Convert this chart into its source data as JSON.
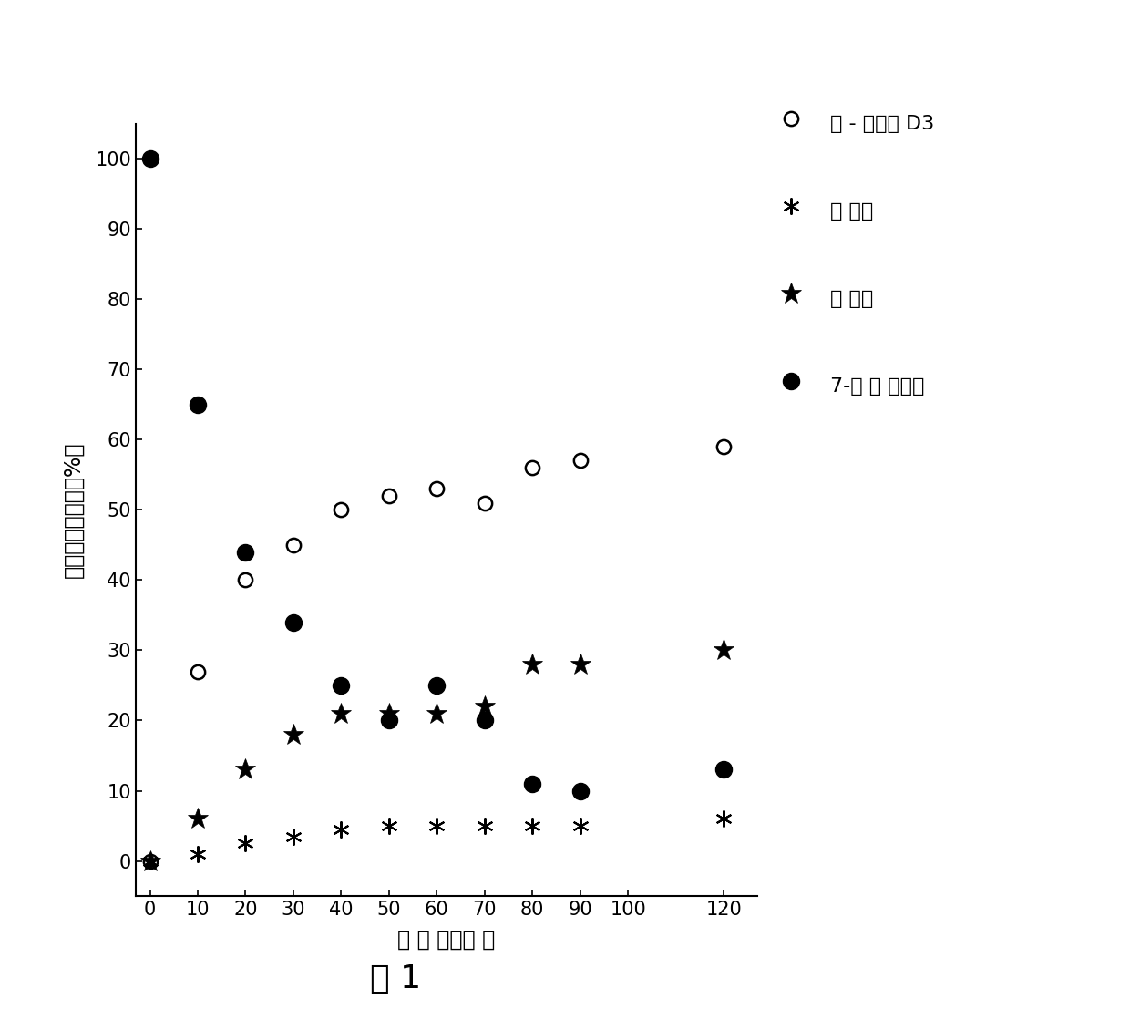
{
  "pre_vitD3_x": [
    0,
    10,
    20,
    30,
    40,
    50,
    60,
    70,
    80,
    90,
    120
  ],
  "pre_vitD3_y": [
    0,
    27,
    40,
    45,
    50,
    52,
    53,
    51,
    56,
    57,
    59
  ],
  "lumisterol_x": [
    0,
    10,
    20,
    30,
    40,
    50,
    60,
    70,
    80,
    90,
    120
  ],
  "lumisterol_y": [
    0,
    1,
    2.5,
    3.5,
    4.5,
    5,
    5,
    5,
    5,
    5,
    6
  ],
  "tachysterol_x": [
    0,
    10,
    20,
    30,
    40,
    50,
    60,
    70,
    80,
    90,
    120
  ],
  "tachysterol_y": [
    0,
    6,
    13,
    18,
    21,
    21,
    21,
    22,
    28,
    28,
    30
  ],
  "dehydrocholesterol_x": [
    0,
    10,
    20,
    30,
    40,
    50,
    60,
    70,
    80,
    90,
    120
  ],
  "dehydrocholesterol_y": [
    100,
    65,
    44,
    34,
    25,
    20,
    25,
    20,
    11,
    10,
    13
  ],
  "xlabel": "时 间 （分钟 ）",
  "ylabel": "异构体百分含量（%）",
  "legend_label_1": "预 - 维生素 D3",
  "legend_label_2": "亮 甸醇",
  "legend_label_3": "速 甸醇",
  "legend_label_4": "7-去 氢 胆固醇",
  "figure_label": "图 1",
  "xlim": [
    -3,
    127
  ],
  "ylim": [
    -5,
    105
  ],
  "xticks": [
    0,
    10,
    20,
    30,
    40,
    50,
    60,
    70,
    80,
    90,
    100,
    120
  ],
  "yticks": [
    0,
    10,
    20,
    30,
    40,
    50,
    60,
    70,
    80,
    90,
    100
  ],
  "bg_color": "#ffffff"
}
